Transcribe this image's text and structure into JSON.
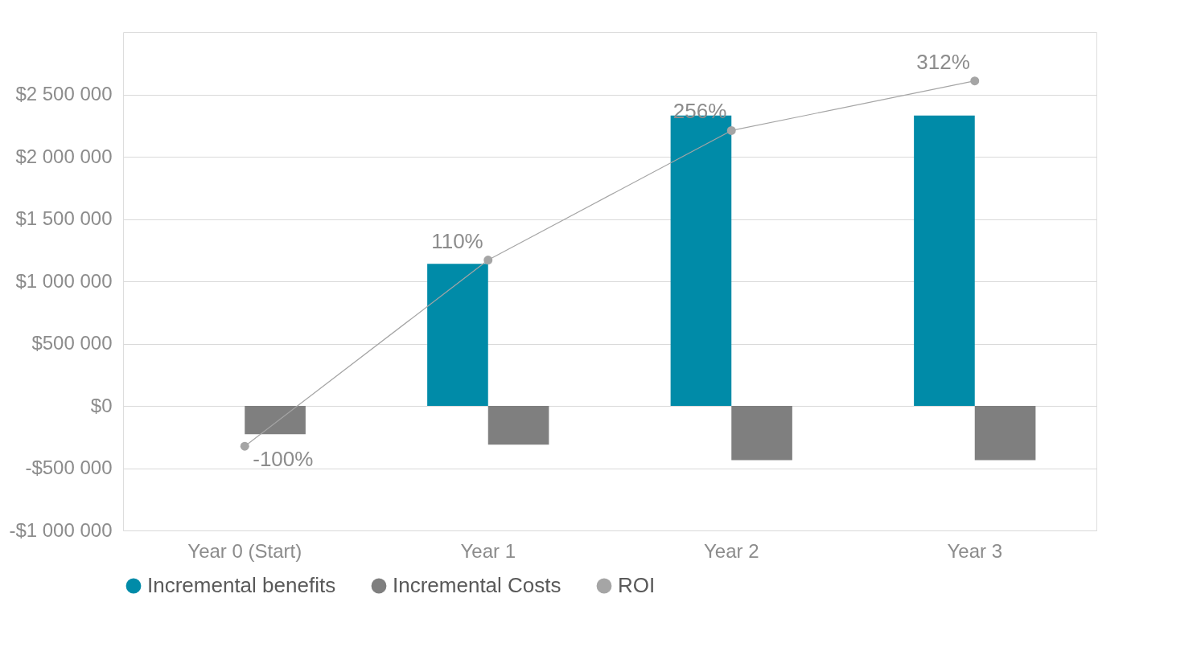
{
  "chart_data": {
    "type": "bar",
    "categories": [
      "Year 0 (Start)",
      "Year 1",
      "Year 2",
      "Year 3"
    ],
    "series": [
      {
        "name": "Incremental benefits",
        "color": "#008ba8",
        "values": [
          0,
          1140000,
          2330000,
          2330000
        ]
      },
      {
        "name": "Incremental Costs",
        "color": "#7f7f7f",
        "values": [
          -227000,
          -312000,
          -435000,
          -435000
        ]
      },
      {
        "name": "ROI",
        "type": "line",
        "axis": "y2",
        "color": "#a5a5a5",
        "marker": "circle",
        "values": [
          -100,
          110,
          256,
          312
        ],
        "value_labels": [
          "-100%",
          "110%",
          "256%",
          "312%"
        ]
      }
    ],
    "ylim": [
      -1000000,
      3000000
    ],
    "yticks": [
      {
        "value": -1000000,
        "label": "-$1 000 000"
      },
      {
        "value": -500000,
        "label": "-$500 000"
      },
      {
        "value": 0,
        "label": "$0"
      },
      {
        "value": 500000,
        "label": "$500 000"
      },
      {
        "value": 1000000,
        "label": "$1 000 000"
      },
      {
        "value": 1500000,
        "label": "$1 500 000"
      },
      {
        "value": 2000000,
        "label": "$2 000 000"
      },
      {
        "value": 2500000,
        "label": "$2 500 000"
      }
    ],
    "y2lim": [
      -195,
      367
    ],
    "grid": "y",
    "legend": "bottom"
  }
}
